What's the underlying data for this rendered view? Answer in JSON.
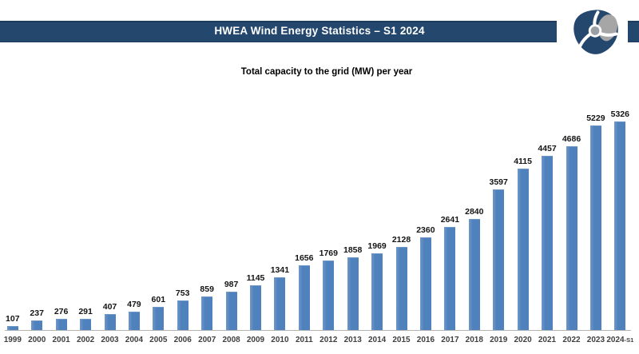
{
  "colors": {
    "navy": "#24476e",
    "navy_dark": "#1d3c5e",
    "bar_blue": "#4f81bd",
    "blade_gray": "#a6a6a6",
    "axis_gray": "#b3b3b3"
  },
  "header": {
    "title": "HWEA Wind Energy Statistics – S1 2024",
    "logo_name": "hwea-wind-turbine-logo"
  },
  "chart_data": {
    "type": "bar",
    "title": "Total capacity to the grid (MW) per year",
    "categories": [
      "1999",
      "2000",
      "2001",
      "2002",
      "2003",
      "2004",
      "2005",
      "2006",
      "2007",
      "2008",
      "2009",
      "2010",
      "2011",
      "2012",
      "2013",
      "2014",
      "2015",
      "2016",
      "2017",
      "2018",
      "2019",
      "2020",
      "2021",
      "2022",
      "2023",
      "2024-S1"
    ],
    "values": [
      107,
      237,
      276,
      291,
      407,
      479,
      601,
      753,
      859,
      987,
      1145,
      1341,
      1656,
      1769,
      1858,
      1969,
      2128,
      2360,
      2641,
      2840,
      3597,
      4115,
      4457,
      4686,
      5229,
      5326
    ],
    "xlabel": "",
    "ylabel": "",
    "ylim": [
      0,
      5450
    ],
    "grid": false,
    "legend": false,
    "data_labels": true,
    "bar_color": "#4f81bd",
    "axis_color": "#b3b3b3"
  }
}
